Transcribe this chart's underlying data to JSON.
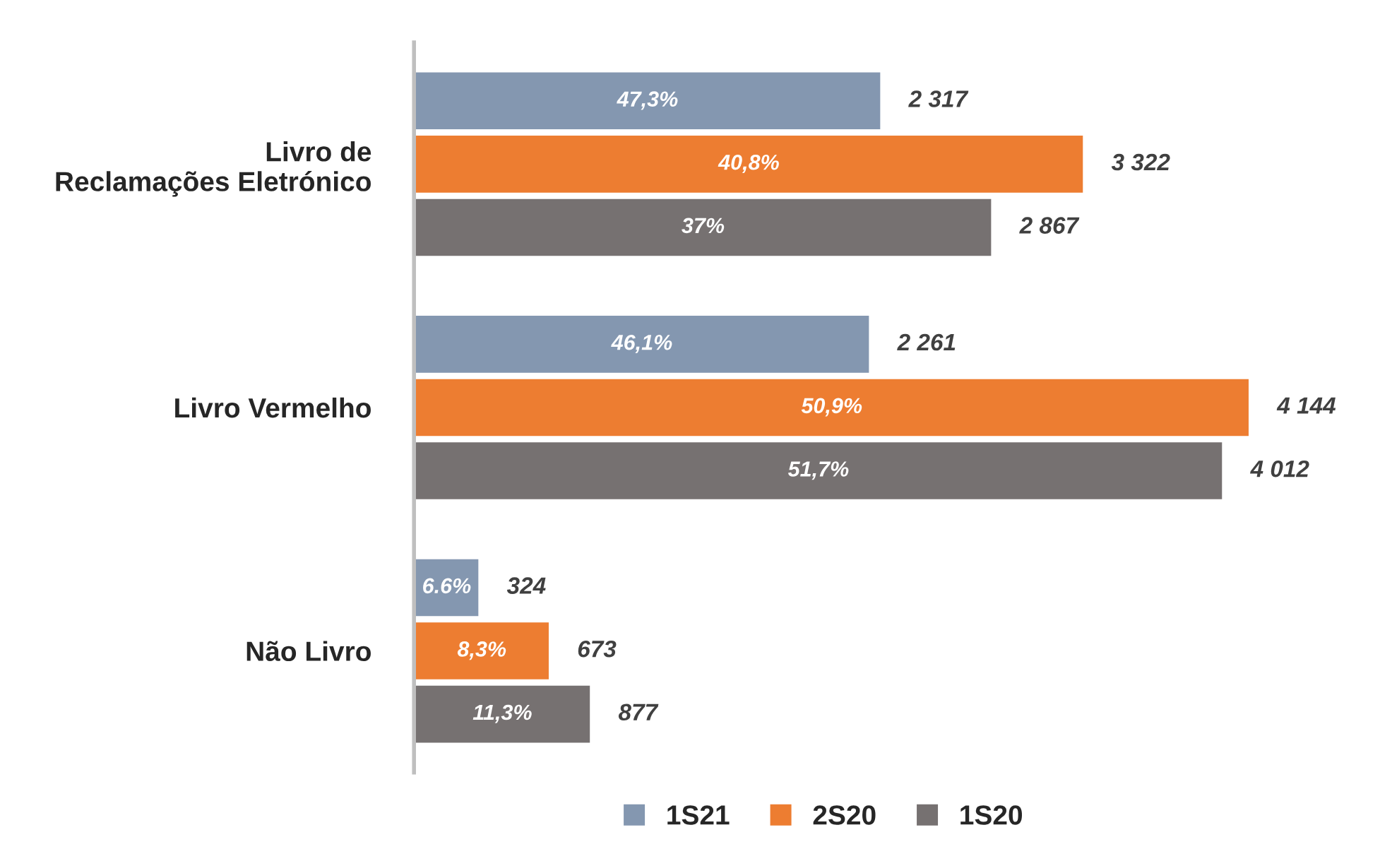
{
  "chart_data": {
    "type": "bar",
    "orientation": "horizontal",
    "categories": [
      "Livro de\nReclamações Eletrónico",
      "Livro Vermelho",
      "Não Livro"
    ],
    "series": [
      {
        "name": "1S21",
        "color": "#8497b0",
        "values": [
          2317,
          2261,
          324
        ],
        "value_labels": [
          "2 317",
          "2 261",
          "324"
        ]
      },
      {
        "name": "2S20",
        "color": "#ed7d31",
        "values": [
          3322,
          4144,
          673
        ],
        "value_labels": [
          "3 322",
          "4 144",
          "673"
        ]
      },
      {
        "name": "1S20",
        "color": "#767171",
        "values": [
          2867,
          4012,
          877
        ],
        "value_labels": [
          "2 867",
          "4 012",
          "877"
        ]
      }
    ],
    "annotations": [
      "47,3%",
      "46,1%",
      "6.6%",
      "40,8%",
      "50,9%",
      "8,3%",
      "37%",
      "51,7%",
      "11,3%"
    ],
    "legend": "bottom",
    "grid": false
  }
}
